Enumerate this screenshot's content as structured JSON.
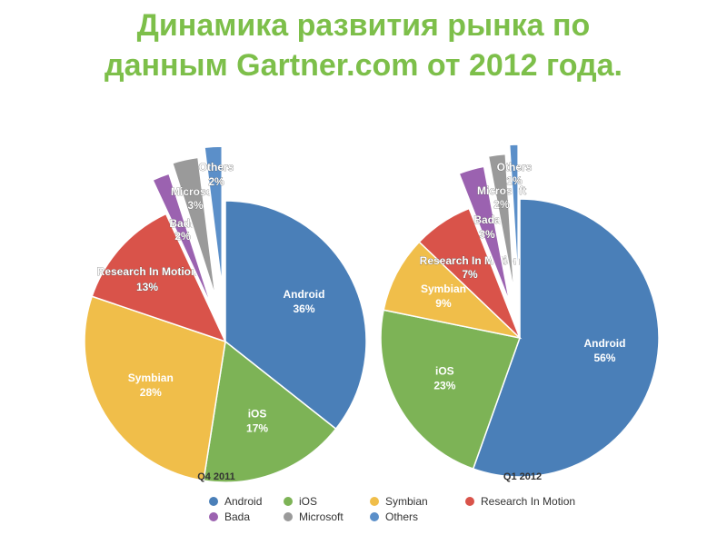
{
  "title": {
    "line1": "Динамика развития рынка по",
    "line2": "данным Gartner.com от 2012 года."
  },
  "colors": {
    "Android": "#4a7fb8",
    "iOS": "#7db356",
    "Symbian": "#f0be4a",
    "Research In Motion": "#d9534a",
    "Bada": "#9b62b0",
    "Microsoft": "#9a9a9a",
    "Others": "#5b8fc9"
  },
  "chart_data": [
    {
      "type": "pie",
      "title": "Q4 2011",
      "categories": [
        "Android",
        "iOS",
        "Symbian",
        "Research In Motion",
        "Bada",
        "Microsoft",
        "Others"
      ],
      "values": [
        36,
        17,
        28,
        13,
        2,
        3,
        2
      ],
      "labels": [
        {
          "name": "Android",
          "text": "36%"
        },
        {
          "name": "iOS",
          "text": "17%"
        },
        {
          "name": "Symbian",
          "text": "28%"
        },
        {
          "name": "Research In Motion",
          "text": "13%"
        },
        {
          "name": "Bada",
          "text": "2%"
        },
        {
          "name": "Microsoft",
          "text": "3%"
        },
        {
          "name": "Others",
          "text": "2%"
        }
      ]
    },
    {
      "type": "pie",
      "title": "Q1 2012",
      "categories": [
        "Android",
        "iOS",
        "Symbian",
        "Research In Motion",
        "Bada",
        "Microsoft",
        "Others"
      ],
      "values": [
        56,
        23,
        9,
        7,
        3,
        2,
        1
      ],
      "labels": [
        {
          "name": "Android",
          "text": "56%"
        },
        {
          "name": "iOS",
          "text": "23%"
        },
        {
          "name": "Symbian",
          "text": "9%"
        },
        {
          "name": "Research In Motion",
          "text": "7%"
        },
        {
          "name": "Bada",
          "text": "3%"
        },
        {
          "name": "Microsoft",
          "text": "2%"
        },
        {
          "name": "Others",
          "text": "1%"
        }
      ]
    }
  ],
  "legend": {
    "items": [
      "Android",
      "iOS",
      "Symbian",
      "Research In Motion",
      "Bada",
      "Microsoft",
      "Others"
    ]
  }
}
